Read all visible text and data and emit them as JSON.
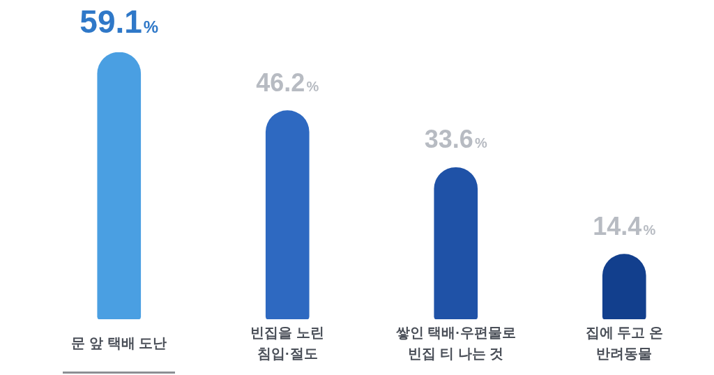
{
  "chart_data": {
    "type": "bar",
    "categories": [
      "문 앞 택배 도난",
      "빈집을 노린 침입·절도",
      "쌓인 택배·우편물로 빈집 티 나는 것",
      "집에 두고 온 반려동물"
    ],
    "values": [
      59.1,
      46.2,
      33.6,
      14.4
    ],
    "colors": [
      "#4a9fe2",
      "#2e69c1",
      "#1f52a7",
      "#123f8d"
    ],
    "value_labels": [
      "59.1%",
      "46.2%",
      "33.6%",
      "14.4%"
    ]
  }
}
